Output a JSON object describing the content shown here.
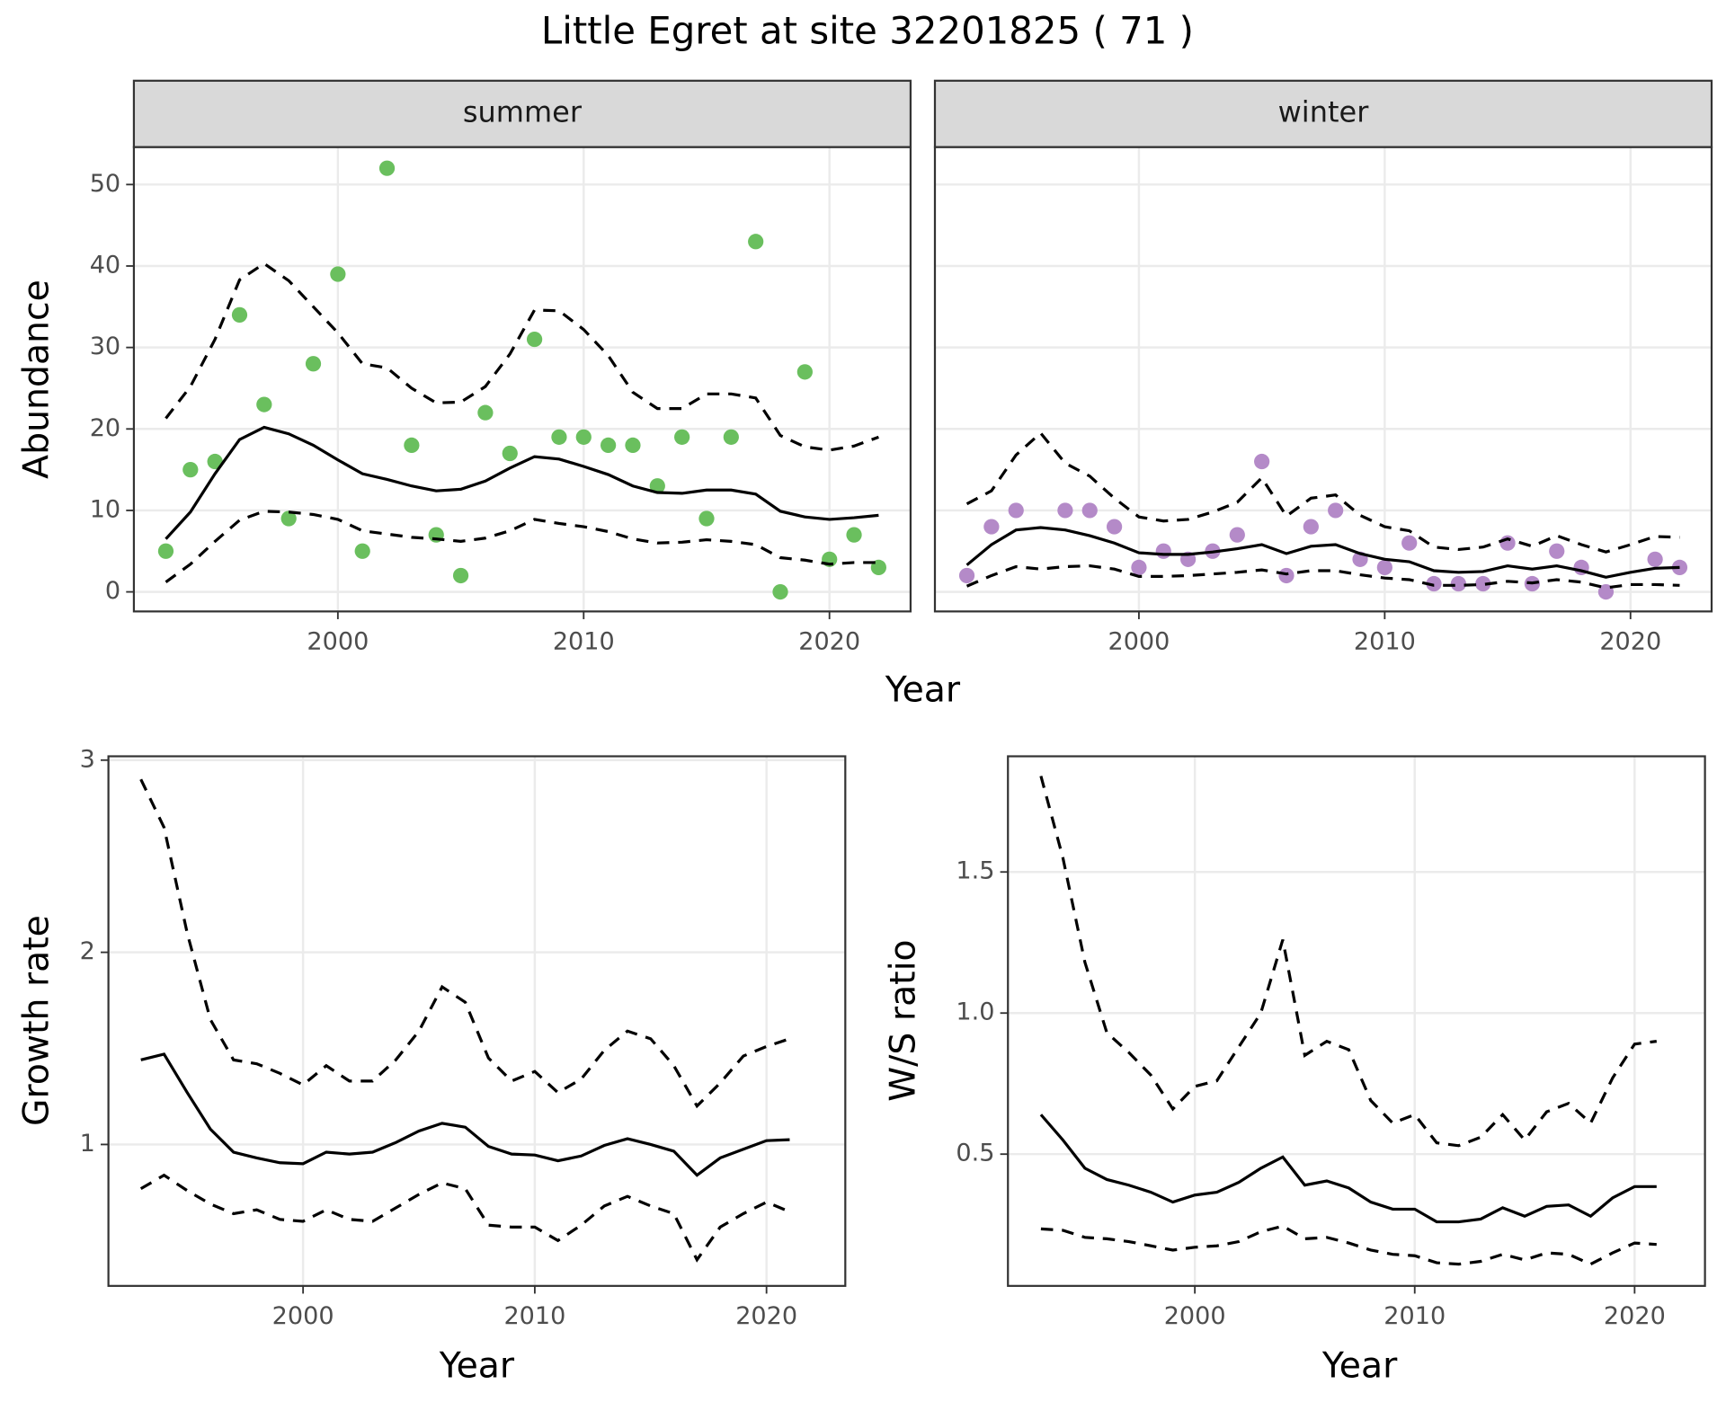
{
  "title": "Little Egret at site 32201825 ( 71 )",
  "chart_data": [
    {
      "type": "line",
      "facet": "summer",
      "ylabel": "Abundance",
      "xlabel": "Year",
      "grid": true,
      "xlim": [
        1991.7,
        2023.3
      ],
      "xticks": [
        2000,
        2010,
        2020
      ],
      "ylim": [
        -2.4,
        54.6
      ],
      "yticks": [
        0,
        10,
        20,
        30,
        40,
        50
      ],
      "x": [
        1993,
        1994,
        1995,
        1996,
        1997,
        1998,
        1999,
        2000,
        2001,
        2002,
        2003,
        2004,
        2005,
        2006,
        2007,
        2008,
        2009,
        2010,
        2011,
        2012,
        2013,
        2014,
        2015,
        2016,
        2017,
        2018,
        2019,
        2020,
        2021,
        2022
      ],
      "series": [
        {
          "style": "points",
          "color": "#6abf5e",
          "values": [
            5,
            15,
            16,
            34,
            23,
            9,
            28,
            39,
            5,
            52,
            18,
            7,
            2,
            22,
            17,
            31,
            19,
            19,
            18,
            18,
            13,
            19,
            9,
            19,
            43,
            0,
            27,
            4,
            7,
            3
          ]
        },
        {
          "style": "solid",
          "color": "#000000",
          "values": [
            6.5,
            9.8,
            14.5,
            18.7,
            20.2,
            19.4,
            18,
            16.2,
            14.5,
            13.8,
            13,
            12.4,
            12.6,
            13.6,
            15.2,
            16.6,
            16.3,
            15.4,
            14.4,
            13,
            12.2,
            12.1,
            12.5,
            12.5,
            12,
            9.9,
            9.2,
            8.9,
            9.1,
            9.4
          ]
        },
        {
          "style": "dashed",
          "color": "#000000",
          "values": [
            21.3,
            25.2,
            31,
            38.3,
            40.3,
            38.2,
            35,
            31.8,
            28,
            27.5,
            25,
            23.2,
            23.3,
            25.2,
            29.2,
            34.6,
            34.5,
            32.2,
            29,
            24.5,
            22.5,
            22.5,
            24.3,
            24.3,
            23.8,
            19.2,
            17.8,
            17.4,
            17.9,
            19
          ]
        },
        {
          "style": "dashed",
          "color": "#000000",
          "values": [
            1.2,
            3.4,
            6.2,
            8.8,
            9.9,
            9.8,
            9.5,
            8.9,
            7.5,
            7.1,
            6.7,
            6.5,
            6.2,
            6.6,
            7.5,
            8.9,
            8.4,
            8,
            7.4,
            6.5,
            6,
            6.1,
            6.4,
            6.2,
            5.8,
            4.2,
            3.9,
            3.4,
            3.6,
            3.6
          ]
        }
      ]
    },
    {
      "type": "line",
      "facet": "winter",
      "grid": true,
      "xlim": [
        1991.7,
        2023.3
      ],
      "xticks": [
        2000,
        2010,
        2020
      ],
      "ylim": [
        -2.4,
        54.6
      ],
      "yticks": [
        0,
        10,
        20,
        30,
        40,
        50
      ],
      "x": [
        1993,
        1994,
        1995,
        1996,
        1997,
        1998,
        1999,
        2000,
        2001,
        2002,
        2003,
        2004,
        2005,
        2006,
        2007,
        2008,
        2009,
        2010,
        2011,
        2012,
        2013,
        2014,
        2015,
        2016,
        2017,
        2018,
        2019,
        2020,
        2021,
        2022
      ],
      "series": [
        {
          "style": "points",
          "color": "#b48ac8",
          "values": [
            2,
            8,
            10,
            null,
            10,
            10,
            8,
            3,
            5,
            4,
            5,
            7,
            16,
            2,
            8,
            10,
            4,
            3,
            6,
            1,
            1,
            1,
            6,
            1,
            5,
            3,
            0,
            null,
            4,
            3
          ]
        },
        {
          "style": "solid",
          "color": "#000000",
          "values": [
            3.3,
            5.8,
            7.6,
            7.9,
            7.6,
            6.9,
            6,
            4.8,
            4.6,
            4.6,
            4.9,
            5.3,
            5.8,
            4.7,
            5.6,
            5.8,
            4.7,
            4,
            3.7,
            2.6,
            2.4,
            2.5,
            3.2,
            2.8,
            3.2,
            2.6,
            1.8,
            2.4,
            2.9,
            3
          ]
        },
        {
          "style": "dashed",
          "color": "#000000",
          "values": [
            10.8,
            12.4,
            16.8,
            19.5,
            15.8,
            14.2,
            11.5,
            9.2,
            8.7,
            8.9,
            9.8,
            11,
            14,
            9.3,
            11.5,
            11.9,
            9.4,
            8,
            7.5,
            5.5,
            5.2,
            5.5,
            6.5,
            5.6,
            6.9,
            5.8,
            4.9,
            5.8,
            6.8,
            6.7
          ]
        },
        {
          "style": "dashed",
          "color": "#000000",
          "values": [
            0.7,
            2,
            3.1,
            2.8,
            3.1,
            3.2,
            2.8,
            1.9,
            1.9,
            2,
            2.2,
            2.4,
            2.7,
            2.2,
            2.6,
            2.6,
            2.1,
            1.7,
            1.5,
            0.8,
            0.8,
            0.9,
            1.3,
            1.1,
            1.5,
            1.2,
            0.5,
            0.9,
            0.9,
            0.8
          ]
        }
      ]
    },
    {
      "type": "line",
      "ylabel": "Growth rate",
      "xlabel": "Year",
      "grid": true,
      "xlim": [
        1991.6,
        2023.4
      ],
      "xticks": [
        2000,
        2010,
        2020
      ],
      "ylim": [
        0.264,
        3.02
      ],
      "yticks": [
        1,
        2,
        3
      ],
      "x": [
        1993,
        1994,
        1995,
        1996,
        1997,
        1998,
        1999,
        2000,
        2001,
        2002,
        2003,
        2004,
        2005,
        2006,
        2007,
        2008,
        2009,
        2010,
        2011,
        2012,
        2013,
        2014,
        2015,
        2016,
        2017,
        2018,
        2019,
        2020,
        2021
      ],
      "series": [
        {
          "style": "solid",
          "color": "#000000",
          "values": [
            1.44,
            1.47,
            1.27,
            1.08,
            0.96,
            0.93,
            0.905,
            0.9,
            0.96,
            0.95,
            0.96,
            1.01,
            1.07,
            1.11,
            1.09,
            0.99,
            0.95,
            0.945,
            0.915,
            0.94,
            0.995,
            1.03,
            1.0,
            0.965,
            0.84,
            0.93,
            0.975,
            1.02,
            1.025
          ]
        },
        {
          "style": "dashed",
          "color": "#000000",
          "values": [
            2.9,
            2.65,
            2.1,
            1.65,
            1.44,
            1.42,
            1.37,
            1.31,
            1.41,
            1.33,
            1.33,
            1.44,
            1.59,
            1.82,
            1.74,
            1.45,
            1.33,
            1.38,
            1.27,
            1.34,
            1.49,
            1.59,
            1.55,
            1.41,
            1.2,
            1.32,
            1.46,
            1.51,
            1.55
          ]
        },
        {
          "style": "dashed",
          "color": "#000000",
          "values": [
            0.77,
            0.84,
            0.76,
            0.69,
            0.64,
            0.66,
            0.61,
            0.6,
            0.66,
            0.61,
            0.6,
            0.67,
            0.74,
            0.8,
            0.77,
            0.58,
            0.57,
            0.57,
            0.5,
            0.58,
            0.68,
            0.73,
            0.68,
            0.64,
            0.4,
            0.57,
            0.64,
            0.7,
            0.65
          ]
        }
      ]
    },
    {
      "type": "line",
      "ylabel": "W/S ratio",
      "xlabel": "Year",
      "grid": true,
      "xlim": [
        1991.5,
        2023.2
      ],
      "xticks": [
        2000,
        2010,
        2020
      ],
      "ylim": [
        0.033,
        1.91
      ],
      "yticks": [
        0.5,
        {
          "value": 1,
          "label": "1.0"
        },
        1.5
      ],
      "x": [
        1993,
        1994,
        1995,
        1996,
        1997,
        1998,
        1999,
        2000,
        2001,
        2002,
        2003,
        2004,
        2005,
        2006,
        2007,
        2008,
        2009,
        2010,
        2011,
        2012,
        2013,
        2014,
        2015,
        2016,
        2017,
        2018,
        2019,
        2020,
        2021
      ],
      "series": [
        {
          "style": "solid",
          "color": "#000000",
          "values": [
            0.64,
            0.55,
            0.45,
            0.41,
            0.39,
            0.365,
            0.33,
            0.355,
            0.365,
            0.4,
            0.45,
            0.49,
            0.39,
            0.405,
            0.38,
            0.33,
            0.305,
            0.305,
            0.26,
            0.26,
            0.27,
            0.31,
            0.28,
            0.315,
            0.32,
            0.28,
            0.345,
            0.385,
            0.385
          ]
        },
        {
          "style": "dashed",
          "color": "#000000",
          "values": [
            1.84,
            1.55,
            1.18,
            0.93,
            0.86,
            0.78,
            0.66,
            0.74,
            0.76,
            0.88,
            1.0,
            1.26,
            0.85,
            0.9,
            0.87,
            0.69,
            0.61,
            0.64,
            0.54,
            0.53,
            0.56,
            0.64,
            0.55,
            0.65,
            0.68,
            0.61,
            0.77,
            0.89,
            0.9
          ]
        },
        {
          "style": "dashed",
          "color": "#000000",
          "values": [
            0.235,
            0.23,
            0.205,
            0.2,
            0.19,
            0.175,
            0.16,
            0.17,
            0.175,
            0.19,
            0.225,
            0.245,
            0.2,
            0.205,
            0.185,
            0.16,
            0.145,
            0.14,
            0.115,
            0.11,
            0.12,
            0.145,
            0.125,
            0.15,
            0.145,
            0.11,
            0.15,
            0.185,
            0.18
          ]
        }
      ]
    }
  ]
}
